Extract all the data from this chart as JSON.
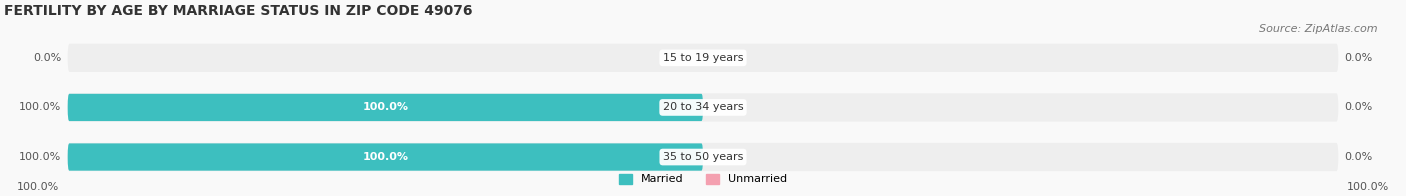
{
  "title": "FERTILITY BY AGE BY MARRIAGE STATUS IN ZIP CODE 49076",
  "source": "Source: ZipAtlas.com",
  "categories": [
    "15 to 19 years",
    "20 to 34 years",
    "35 to 50 years"
  ],
  "married_values": [
    0.0,
    100.0,
    100.0
  ],
  "unmarried_values": [
    0.0,
    0.0,
    0.0
  ],
  "married_color": "#3dbfbf",
  "unmarried_color": "#f4a0b0",
  "bar_bg_color": "#eeeeee",
  "married_label": "Married",
  "unmarried_label": "Unmarried",
  "title_fontsize": 10,
  "source_fontsize": 8,
  "label_fontsize": 8,
  "cat_fontsize": 8,
  "axis_label_left": "100.0%",
  "axis_label_right": "100.0%",
  "bar_height": 0.55,
  "fig_bg_color": "#f9f9f9"
}
